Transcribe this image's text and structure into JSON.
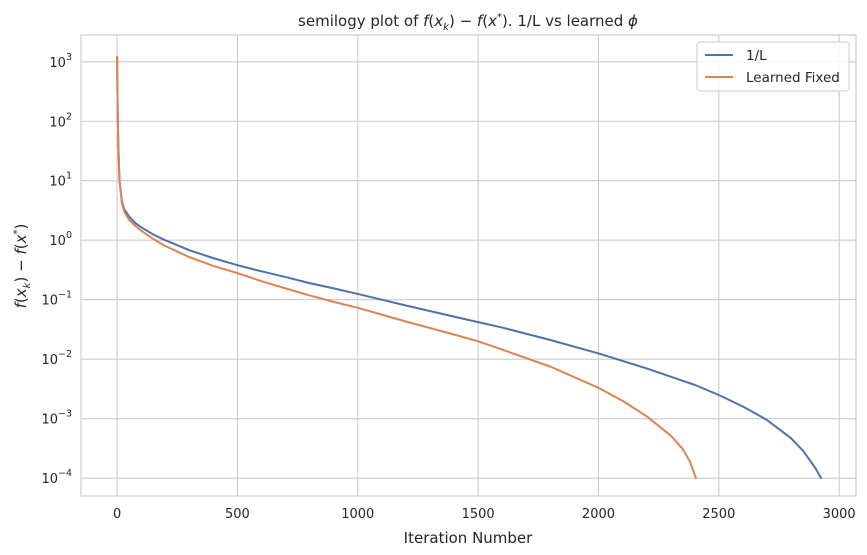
{
  "chart_data": {
    "type": "line",
    "title_parts": {
      "prefix": "semilogy plot of ",
      "f1": "f",
      "x1": "x",
      "k": "k",
      "minus": " − ",
      "f2": "f",
      "x2": "x",
      "star": "*",
      "middle": "). 1/L vs learned ",
      "phi": "ϕ"
    },
    "xlabel": "Iteration Number",
    "ylabel_parts": {
      "f1": "f",
      "x1": "x",
      "k": "k",
      "minus": " − ",
      "f2": "f",
      "x2": "x",
      "star": "*"
    },
    "xlim": [
      -150,
      3070
    ],
    "ylim_log10": [
      -4.3,
      3.45
    ],
    "yscale": "log",
    "grid": true,
    "legend_position": "top-right",
    "x_ticks": [
      0,
      500,
      1000,
      1500,
      2000,
      2500,
      3000
    ],
    "x_tick_labels": [
      "0",
      "500",
      "1000",
      "1500",
      "2000",
      "2500",
      "3000"
    ],
    "y_ticks": [
      {
        "base": "10",
        "exp": "3",
        "value": 1000
      },
      {
        "base": "10",
        "exp": "2",
        "value": 100
      },
      {
        "base": "10",
        "exp": "1",
        "value": 10
      },
      {
        "base": "10",
        "exp": "0",
        "value": 1
      },
      {
        "base": "10",
        "exp": "−1",
        "value": 0.1
      },
      {
        "base": "10",
        "exp": "−2",
        "value": 0.01
      },
      {
        "base": "10",
        "exp": "−3",
        "value": 0.001
      },
      {
        "base": "10",
        "exp": "−4",
        "value": 0.0001
      }
    ],
    "series": [
      {
        "name": "1/L",
        "color": "#4c72b0",
        "x": [
          0,
          2,
          5,
          10,
          20,
          30,
          50,
          75,
          100,
          150,
          200,
          300,
          400,
          500,
          600,
          700,
          800,
          900,
          1000,
          1200,
          1400,
          1500,
          1600,
          1800,
          2000,
          2200,
          2400,
          2500,
          2600,
          2700,
          2800,
          2850,
          2900,
          2925
        ],
        "y": [
          1200,
          200,
          40,
          10,
          4.5,
          3.3,
          2.5,
          1.95,
          1.65,
          1.25,
          1.0,
          0.68,
          0.5,
          0.38,
          0.3,
          0.24,
          0.19,
          0.155,
          0.125,
          0.08,
          0.052,
          0.042,
          0.034,
          0.021,
          0.0125,
          0.007,
          0.0037,
          0.0025,
          0.0016,
          0.00095,
          0.00047,
          0.00029,
          0.00015,
          0.0001
        ]
      },
      {
        "name": "Learned Fixed",
        "color": "#dd8452",
        "x": [
          0,
          2,
          5,
          10,
          20,
          30,
          50,
          75,
          100,
          150,
          200,
          300,
          400,
          500,
          600,
          700,
          800,
          900,
          1000,
          1200,
          1400,
          1500,
          1600,
          1800,
          2000,
          2100,
          2200,
          2300,
          2350,
          2380,
          2405
        ],
        "y": [
          1200,
          200,
          40,
          10,
          4.2,
          3.0,
          2.2,
          1.75,
          1.45,
          1.05,
          0.8,
          0.52,
          0.37,
          0.28,
          0.205,
          0.155,
          0.118,
          0.092,
          0.073,
          0.043,
          0.026,
          0.02,
          0.0145,
          0.0075,
          0.0033,
          0.002,
          0.0011,
          0.00052,
          0.00031,
          0.00019,
          0.0001
        ]
      }
    ]
  }
}
